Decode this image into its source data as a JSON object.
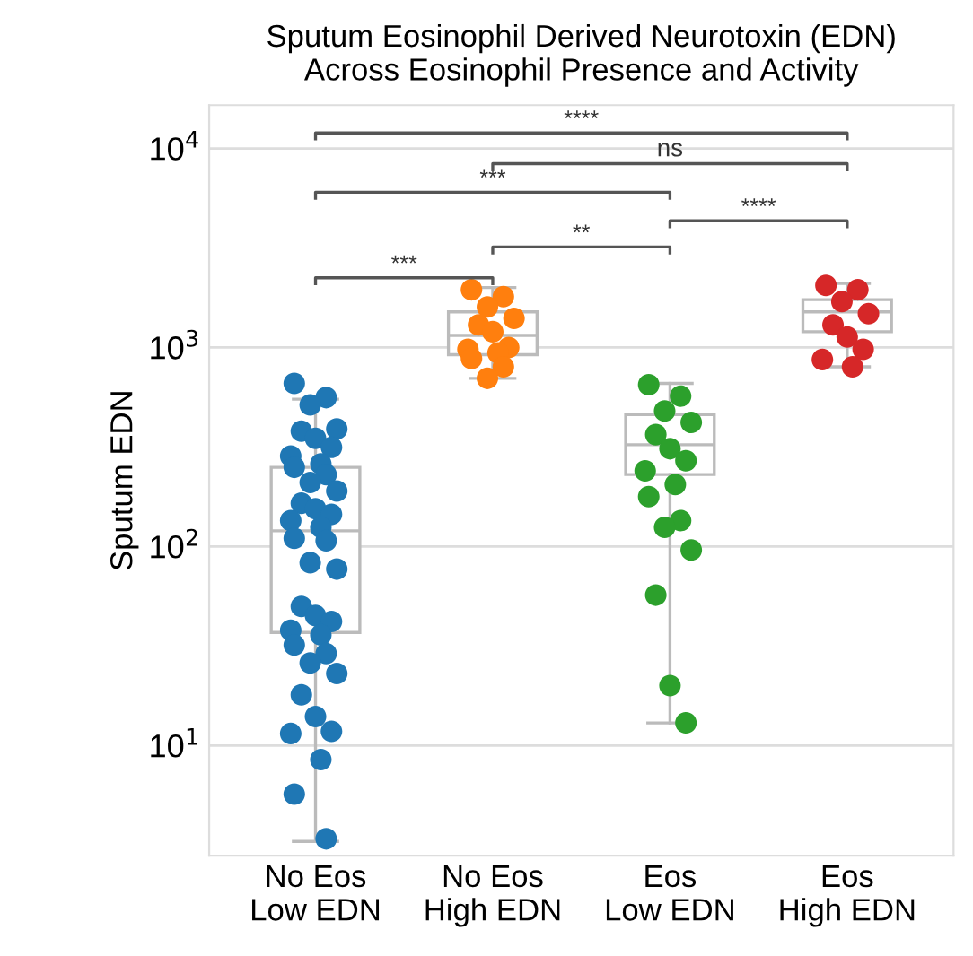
{
  "chart_data": {
    "type": "box",
    "title": "Sputum Eosinophil Derived Neurotoxin (EDN)\nAcross Eosinophil Presence and Activity",
    "ylabel": "Sputum EDN",
    "categories": [
      "No Eos\nLow EDN",
      "No Eos\nHigh EDN",
      "Eos\nLow EDN",
      "Eos\nHigh EDN"
    ],
    "boxes": [
      {
        "low": 3.3,
        "q1": 37,
        "median": 120,
        "q3": 250,
        "high": 550
      },
      {
        "low": 700,
        "q1": 920,
        "median": 1150,
        "q3": 1510,
        "high": 2000
      },
      {
        "low": 13,
        "q1": 230,
        "median": 325,
        "q3": 460,
        "high": 660
      },
      {
        "low": 800,
        "q1": 1200,
        "median": 1510,
        "q3": 1740,
        "high": 2100
      }
    ],
    "series": [
      {
        "type": "scatter",
        "color": "#1f77b4",
        "x": [
          "No Eos\nLow EDN",
          "No Eos\nLow EDN",
          "No Eos\nLow EDN",
          "No Eos\nLow EDN",
          "No Eos\nLow EDN",
          "No Eos\nLow EDN",
          "No Eos\nLow EDN",
          "No Eos\nLow EDN",
          "No Eos\nLow EDN",
          "No Eos\nLow EDN",
          "No Eos\nLow EDN",
          "No Eos\nLow EDN",
          "No Eos\nLow EDN",
          "No Eos\nLow EDN",
          "No Eos\nLow EDN",
          "No Eos\nLow EDN",
          "No Eos\nLow EDN",
          "No Eos\nLow EDN",
          "No Eos\nLow EDN",
          "No Eos\nLow EDN",
          "No Eos\nLow EDN",
          "No Eos\nLow EDN",
          "No Eos\nLow EDN",
          "No Eos\nLow EDN",
          "No Eos\nLow EDN",
          "No Eos\nLow EDN",
          "No Eos\nLow EDN",
          "No Eos\nLow EDN",
          "No Eos\nLow EDN",
          "No Eos\nLow EDN",
          "No Eos\nLow EDN",
          "No Eos\nLow EDN",
          "No Eos\nLow EDN",
          "No Eos\nLow EDN",
          "No Eos\nLow EDN",
          "No Eos\nLow EDN",
          "No Eos\nLow EDN",
          "No Eos\nLow EDN"
        ],
        "values": [
          660,
          560,
          515,
          390,
          380,
          350,
          315,
          285,
          260,
          250,
          230,
          210,
          190,
          165,
          155,
          145,
          135,
          125,
          110,
          107,
          83,
          77,
          50,
          45,
          42,
          38,
          36,
          32,
          29,
          26,
          23,
          18,
          14,
          11.8,
          11.5,
          8.5,
          5.7,
          3.4
        ]
      },
      {
        "type": "scatter",
        "color": "#ff7f0e",
        "x": [
          "No Eos\nHigh EDN",
          "No Eos\nHigh EDN",
          "No Eos\nHigh EDN",
          "No Eos\nHigh EDN",
          "No Eos\nHigh EDN",
          "No Eos\nHigh EDN",
          "No Eos\nHigh EDN",
          "No Eos\nHigh EDN",
          "No Eos\nHigh EDN",
          "No Eos\nHigh EDN",
          "No Eos\nHigh EDN",
          "No Eos\nHigh EDN"
        ],
        "values": [
          1950,
          1800,
          1600,
          1400,
          1300,
          1200,
          1000,
          980,
          940,
          880,
          800,
          700
        ]
      },
      {
        "type": "scatter",
        "color": "#2ca02c",
        "x": [
          "Eos\nLow EDN",
          "Eos\nLow EDN",
          "Eos\nLow EDN",
          "Eos\nLow EDN",
          "Eos\nLow EDN",
          "Eos\nLow EDN",
          "Eos\nLow EDN",
          "Eos\nLow EDN",
          "Eos\nLow EDN",
          "Eos\nLow EDN",
          "Eos\nLow EDN",
          "Eos\nLow EDN",
          "Eos\nLow EDN",
          "Eos\nLow EDN",
          "Eos\nLow EDN",
          "Eos\nLow EDN"
        ],
        "values": [
          650,
          570,
          480,
          420,
          365,
          310,
          270,
          240,
          205,
          178,
          135,
          125,
          96,
          57,
          20,
          13
        ]
      },
      {
        "type": "scatter",
        "color": "#d62728",
        "x": [
          "Eos\nHigh EDN",
          "Eos\nHigh EDN",
          "Eos\nHigh EDN",
          "Eos\nHigh EDN",
          "Eos\nHigh EDN",
          "Eos\nHigh EDN",
          "Eos\nHigh EDN",
          "Eos\nHigh EDN",
          "Eos\nHigh EDN"
        ],
        "values": [
          2050,
          1950,
          1700,
          1480,
          1300,
          1130,
          980,
          870,
          800
        ]
      }
    ],
    "annotations": [
      "****",
      "ns",
      "***",
      "****",
      "**",
      "***"
    ],
    "log": "y",
    "ylim": [
      2.8,
      16500
    ],
    "yticks": [
      {
        "value": 10,
        "label": "10$^{1}$"
      },
      {
        "value": 100,
        "label": "10$^{2}$"
      },
      {
        "value": 1000,
        "label": "10$^{3}$"
      },
      {
        "value": 10000,
        "label": "10$^{4}$"
      }
    ],
    "grid": "y",
    "marker": "circle",
    "legend": false
  }
}
